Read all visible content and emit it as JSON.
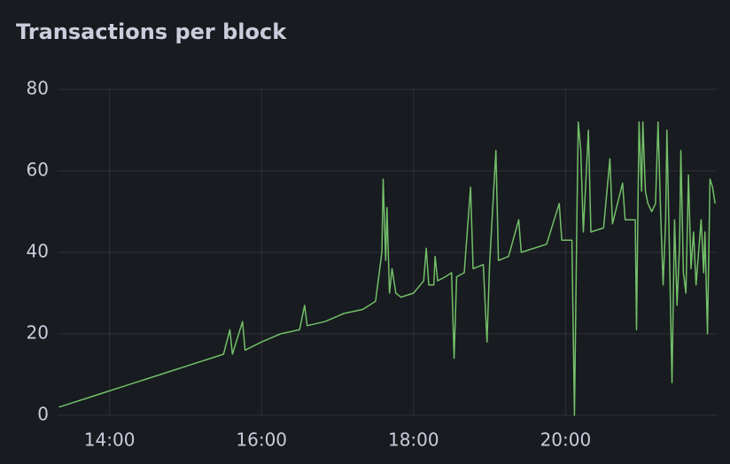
{
  "chart_data": {
    "type": "line",
    "title": "Transactions per block",
    "x": [
      800,
      810,
      820,
      830,
      840,
      850,
      860,
      870,
      880,
      890,
      900,
      910,
      920,
      930,
      935,
      937,
      945,
      947,
      960,
      975,
      990,
      994,
      996,
      1010,
      1025,
      1040,
      1050,
      1055,
      1056,
      1058,
      1059,
      1061,
      1063,
      1066,
      1070,
      1080,
      1088,
      1090,
      1092,
      1096,
      1097,
      1099,
      1105,
      1110,
      1112,
      1114,
      1120,
      1125,
      1127,
      1135,
      1138,
      1140,
      1145,
      1147,
      1155,
      1163,
      1165,
      1175,
      1185,
      1195,
      1197,
      1205,
      1207,
      1209,
      1210,
      1212,
      1214,
      1218,
      1220,
      1230,
      1235,
      1237,
      1245,
      1247,
      1255,
      1256,
      1257,
      1258,
      1260,
      1261,
      1263,
      1265,
      1268,
      1271,
      1273,
      1275,
      1277,
      1279,
      1280,
      1282,
      1284,
      1286,
      1288,
      1290,
      1291,
      1293,
      1295,
      1297,
      1299,
      1301,
      1303,
      1305,
      1307,
      1309,
      1310,
      1312,
      1314,
      1316,
      1318
    ],
    "series": [
      {
        "name": "Transactions per block",
        "color": "#73bf69",
        "values": [
          2,
          3,
          4,
          5,
          6,
          7,
          8,
          9,
          10,
          11,
          12,
          13,
          14,
          15,
          21,
          15,
          23,
          16,
          18,
          20,
          21,
          27,
          22,
          23,
          25,
          26,
          28,
          40,
          58,
          38,
          51,
          30,
          36,
          30,
          29,
          30,
          33,
          41,
          32,
          32,
          39,
          33,
          34,
          35,
          14,
          34,
          35,
          56,
          36,
          37,
          18,
          37,
          65,
          38,
          39,
          48,
          40,
          41,
          42,
          52,
          43,
          43,
          0,
          50,
          72,
          65,
          45,
          70,
          45,
          46,
          63,
          47,
          57,
          48,
          48,
          21,
          48,
          72,
          55,
          72,
          55,
          52,
          50,
          52,
          72,
          50,
          32,
          48,
          70,
          40,
          8,
          48,
          27,
          42,
          65,
          35,
          30,
          59,
          36,
          45,
          32,
          40,
          48,
          35,
          45,
          20,
          58,
          56,
          52
        ]
      }
    ],
    "xlim": [
      799,
      1320
    ],
    "xticks": [
      {
        "value": 840,
        "label": "14:00"
      },
      {
        "value": 960,
        "label": "16:00"
      },
      {
        "value": 1080,
        "label": "18:00"
      },
      {
        "value": 1200,
        "label": "20:00"
      }
    ],
    "ylim": [
      0,
      80
    ],
    "yticks": [
      0,
      20,
      40,
      60,
      80
    ],
    "grid": true
  }
}
